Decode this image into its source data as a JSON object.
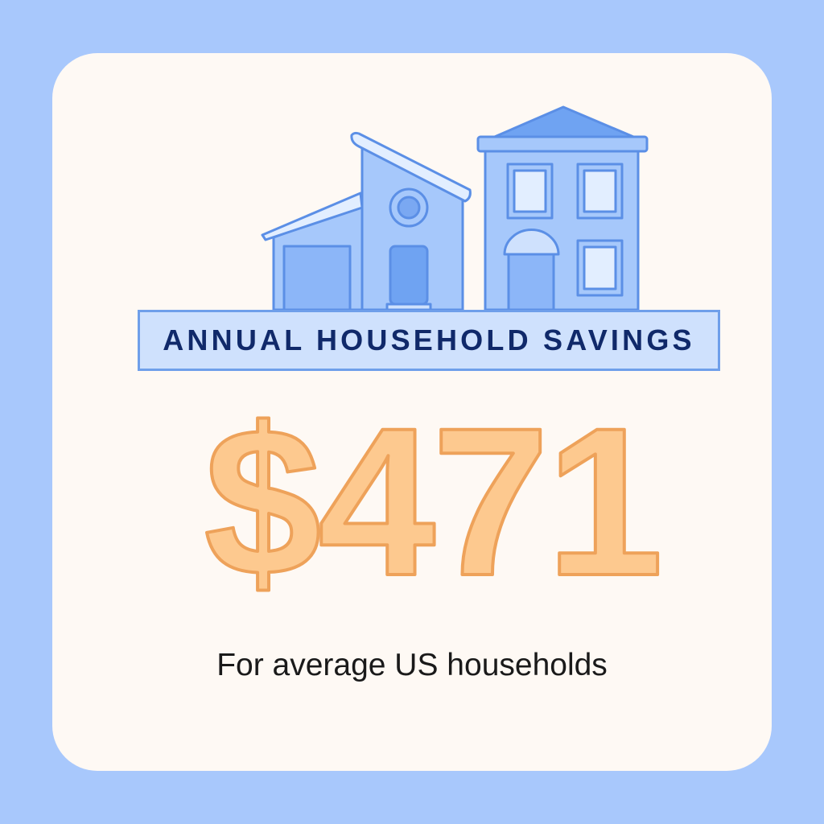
{
  "banner": {
    "title": "ANNUAL HOUSEHOLD SAVINGS"
  },
  "amount": {
    "value": "$471"
  },
  "subtitle": "For average US households",
  "colors": {
    "background": "#a8c8fc",
    "card": "#fef9f4",
    "house_fill": "#a6c8fb",
    "house_stroke": "#5b8fe6",
    "title_text": "#10296a",
    "amount_fill": "#fdc98f",
    "amount_stroke": "#eea25a"
  },
  "icons": [
    "house-illustration"
  ]
}
